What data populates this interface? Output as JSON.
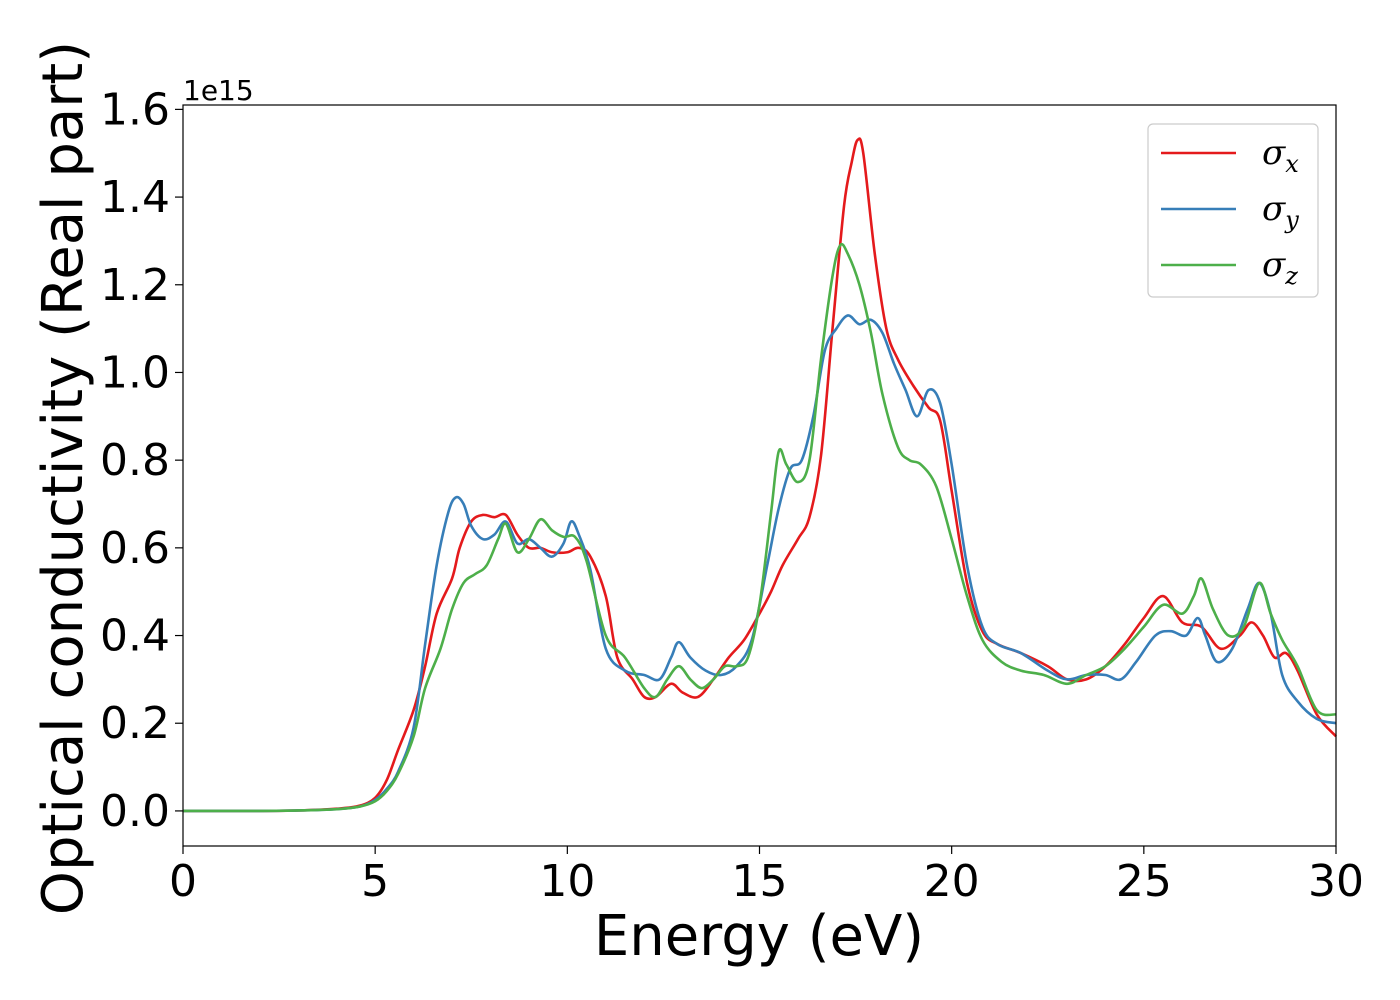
{
  "chart_data": {
    "type": "line",
    "xlabel": "Energy (eV)",
    "ylabel": "Optical conductivity (Real part)",
    "y_offset_label": "1e15",
    "xlim": [
      0,
      30
    ],
    "ylim": [
      -0.08,
      1.61
    ],
    "xticks": [
      0,
      5,
      10,
      15,
      20,
      25,
      30
    ],
    "xtick_labels": [
      "0",
      "5",
      "10",
      "15",
      "20",
      "25",
      "30"
    ],
    "yticks": [
      0.0,
      0.2,
      0.4,
      0.6,
      0.8,
      1.0,
      1.2,
      1.4,
      1.6
    ],
    "ytick_labels": [
      "0.0",
      "0.2",
      "0.4",
      "0.6",
      "0.8",
      "1.0",
      "1.2",
      "1.4",
      "1.6"
    ],
    "grid": false,
    "legend_position": "top-right",
    "series": [
      {
        "name": "σx",
        "symbol": "σ",
        "subscript": "x",
        "color": "#e41a1c",
        "points": [
          [
            0,
            0
          ],
          [
            2,
            0
          ],
          [
            3,
            0.001
          ],
          [
            4,
            0.005
          ],
          [
            4.6,
            0.012
          ],
          [
            5,
            0.03
          ],
          [
            5.3,
            0.07
          ],
          [
            5.6,
            0.14
          ],
          [
            6,
            0.23
          ],
          [
            6.3,
            0.33
          ],
          [
            6.6,
            0.45
          ],
          [
            7,
            0.53
          ],
          [
            7.2,
            0.6
          ],
          [
            7.5,
            0.66
          ],
          [
            7.8,
            0.675
          ],
          [
            8.1,
            0.67
          ],
          [
            8.4,
            0.675
          ],
          [
            8.7,
            0.63
          ],
          [
            9,
            0.6
          ],
          [
            9.3,
            0.6
          ],
          [
            9.6,
            0.59
          ],
          [
            10,
            0.59
          ],
          [
            10.3,
            0.6
          ],
          [
            10.6,
            0.58
          ],
          [
            11,
            0.49
          ],
          [
            11.3,
            0.35
          ],
          [
            11.7,
            0.3
          ],
          [
            12,
            0.26
          ],
          [
            12.3,
            0.26
          ],
          [
            12.7,
            0.29
          ],
          [
            13,
            0.27
          ],
          [
            13.4,
            0.26
          ],
          [
            13.8,
            0.3
          ],
          [
            14.2,
            0.35
          ],
          [
            14.6,
            0.39
          ],
          [
            15,
            0.45
          ],
          [
            15.3,
            0.5
          ],
          [
            15.6,
            0.56
          ],
          [
            16,
            0.62
          ],
          [
            16.3,
            0.67
          ],
          [
            16.6,
            0.81
          ],
          [
            16.9,
            1.1
          ],
          [
            17.2,
            1.38
          ],
          [
            17.4,
            1.48
          ],
          [
            17.55,
            1.53
          ],
          [
            17.7,
            1.5
          ],
          [
            18,
            1.27
          ],
          [
            18.3,
            1.1
          ],
          [
            18.6,
            1.03
          ],
          [
            19,
            0.97
          ],
          [
            19.4,
            0.92
          ],
          [
            19.7,
            0.89
          ],
          [
            20,
            0.73
          ],
          [
            20.4,
            0.52
          ],
          [
            20.8,
            0.41
          ],
          [
            21.2,
            0.38
          ],
          [
            21.8,
            0.36
          ],
          [
            22.5,
            0.33
          ],
          [
            23,
            0.3
          ],
          [
            23.5,
            0.3
          ],
          [
            24,
            0.33
          ],
          [
            24.5,
            0.38
          ],
          [
            25,
            0.44
          ],
          [
            25.5,
            0.49
          ],
          [
            26,
            0.43
          ],
          [
            26.5,
            0.42
          ],
          [
            27,
            0.37
          ],
          [
            27.5,
            0.4
          ],
          [
            27.8,
            0.43
          ],
          [
            28.1,
            0.4
          ],
          [
            28.4,
            0.35
          ],
          [
            28.7,
            0.36
          ],
          [
            29,
            0.32
          ],
          [
            29.5,
            0.22
          ],
          [
            30,
            0.17
          ]
        ]
      },
      {
        "name": "σy",
        "symbol": "σ",
        "subscript": "y",
        "color": "#377eb8",
        "points": [
          [
            0,
            0
          ],
          [
            2,
            0
          ],
          [
            3,
            0.001
          ],
          [
            4,
            0.004
          ],
          [
            4.6,
            0.01
          ],
          [
            5,
            0.025
          ],
          [
            5.3,
            0.05
          ],
          [
            5.6,
            0.09
          ],
          [
            6,
            0.19
          ],
          [
            6.3,
            0.38
          ],
          [
            6.6,
            0.56
          ],
          [
            6.9,
            0.68
          ],
          [
            7.1,
            0.715
          ],
          [
            7.3,
            0.7
          ],
          [
            7.5,
            0.65
          ],
          [
            7.8,
            0.62
          ],
          [
            8.1,
            0.63
          ],
          [
            8.4,
            0.66
          ],
          [
            8.7,
            0.61
          ],
          [
            9,
            0.62
          ],
          [
            9.3,
            0.6
          ],
          [
            9.6,
            0.58
          ],
          [
            9.9,
            0.61
          ],
          [
            10.1,
            0.66
          ],
          [
            10.3,
            0.63
          ],
          [
            10.6,
            0.55
          ],
          [
            11,
            0.37
          ],
          [
            11.5,
            0.32
          ],
          [
            12,
            0.31
          ],
          [
            12.4,
            0.3
          ],
          [
            12.7,
            0.35
          ],
          [
            12.9,
            0.385
          ],
          [
            13.2,
            0.35
          ],
          [
            13.6,
            0.32
          ],
          [
            14,
            0.31
          ],
          [
            14.4,
            0.33
          ],
          [
            14.8,
            0.39
          ],
          [
            15.2,
            0.56
          ],
          [
            15.5,
            0.69
          ],
          [
            15.8,
            0.78
          ],
          [
            16.1,
            0.8
          ],
          [
            16.4,
            0.9
          ],
          [
            16.7,
            1.05
          ],
          [
            17,
            1.1
          ],
          [
            17.3,
            1.13
          ],
          [
            17.6,
            1.11
          ],
          [
            17.9,
            1.12
          ],
          [
            18.2,
            1.09
          ],
          [
            18.5,
            1.02
          ],
          [
            18.8,
            0.96
          ],
          [
            19.1,
            0.9
          ],
          [
            19.4,
            0.96
          ],
          [
            19.7,
            0.93
          ],
          [
            20,
            0.79
          ],
          [
            20.4,
            0.56
          ],
          [
            20.8,
            0.42
          ],
          [
            21.2,
            0.38
          ],
          [
            21.8,
            0.36
          ],
          [
            22.5,
            0.32
          ],
          [
            23,
            0.3
          ],
          [
            23.5,
            0.31
          ],
          [
            24,
            0.31
          ],
          [
            24.4,
            0.3
          ],
          [
            24.8,
            0.34
          ],
          [
            25.3,
            0.4
          ],
          [
            25.7,
            0.41
          ],
          [
            26.1,
            0.4
          ],
          [
            26.4,
            0.44
          ],
          [
            26.6,
            0.4
          ],
          [
            26.9,
            0.34
          ],
          [
            27.3,
            0.37
          ],
          [
            27.7,
            0.46
          ],
          [
            28,
            0.52
          ],
          [
            28.3,
            0.45
          ],
          [
            28.6,
            0.31
          ],
          [
            29,
            0.25
          ],
          [
            29.5,
            0.21
          ],
          [
            30,
            0.2
          ]
        ]
      },
      {
        "name": "σz",
        "symbol": "σ",
        "subscript": "z",
        "color": "#4daf4a",
        "points": [
          [
            0,
            0
          ],
          [
            2,
            0
          ],
          [
            3,
            0.001
          ],
          [
            4,
            0.004
          ],
          [
            4.6,
            0.01
          ],
          [
            5,
            0.022
          ],
          [
            5.3,
            0.045
          ],
          [
            5.6,
            0.085
          ],
          [
            6,
            0.17
          ],
          [
            6.3,
            0.28
          ],
          [
            6.7,
            0.37
          ],
          [
            7,
            0.46
          ],
          [
            7.3,
            0.52
          ],
          [
            7.6,
            0.54
          ],
          [
            7.9,
            0.56
          ],
          [
            8.2,
            0.62
          ],
          [
            8.4,
            0.655
          ],
          [
            8.7,
            0.59
          ],
          [
            9,
            0.62
          ],
          [
            9.3,
            0.665
          ],
          [
            9.6,
            0.64
          ],
          [
            9.9,
            0.625
          ],
          [
            10.2,
            0.625
          ],
          [
            10.5,
            0.57
          ],
          [
            11,
            0.4
          ],
          [
            11.5,
            0.35
          ],
          [
            12,
            0.28
          ],
          [
            12.3,
            0.26
          ],
          [
            12.6,
            0.3
          ],
          [
            12.9,
            0.33
          ],
          [
            13.2,
            0.3
          ],
          [
            13.5,
            0.28
          ],
          [
            13.8,
            0.3
          ],
          [
            14.1,
            0.33
          ],
          [
            14.4,
            0.33
          ],
          [
            14.7,
            0.35
          ],
          [
            15,
            0.47
          ],
          [
            15.3,
            0.68
          ],
          [
            15.5,
            0.82
          ],
          [
            15.7,
            0.79
          ],
          [
            16,
            0.75
          ],
          [
            16.3,
            0.8
          ],
          [
            16.6,
            1.03
          ],
          [
            16.9,
            1.22
          ],
          [
            17.1,
            1.29
          ],
          [
            17.3,
            1.27
          ],
          [
            17.6,
            1.2
          ],
          [
            17.9,
            1.09
          ],
          [
            18.2,
            0.95
          ],
          [
            18.6,
            0.83
          ],
          [
            18.9,
            0.8
          ],
          [
            19.2,
            0.79
          ],
          [
            19.6,
            0.74
          ],
          [
            20,
            0.62
          ],
          [
            20.4,
            0.49
          ],
          [
            20.8,
            0.39
          ],
          [
            21.3,
            0.34
          ],
          [
            21.8,
            0.32
          ],
          [
            22.4,
            0.31
          ],
          [
            23,
            0.29
          ],
          [
            23.5,
            0.31
          ],
          [
            24,
            0.33
          ],
          [
            24.5,
            0.37
          ],
          [
            25,
            0.42
          ],
          [
            25.5,
            0.47
          ],
          [
            26,
            0.45
          ],
          [
            26.3,
            0.49
          ],
          [
            26.5,
            0.53
          ],
          [
            26.8,
            0.46
          ],
          [
            27.2,
            0.4
          ],
          [
            27.6,
            0.42
          ],
          [
            28,
            0.52
          ],
          [
            28.3,
            0.45
          ],
          [
            28.6,
            0.39
          ],
          [
            29,
            0.33
          ],
          [
            29.5,
            0.23
          ],
          [
            30,
            0.22
          ]
        ]
      }
    ]
  }
}
